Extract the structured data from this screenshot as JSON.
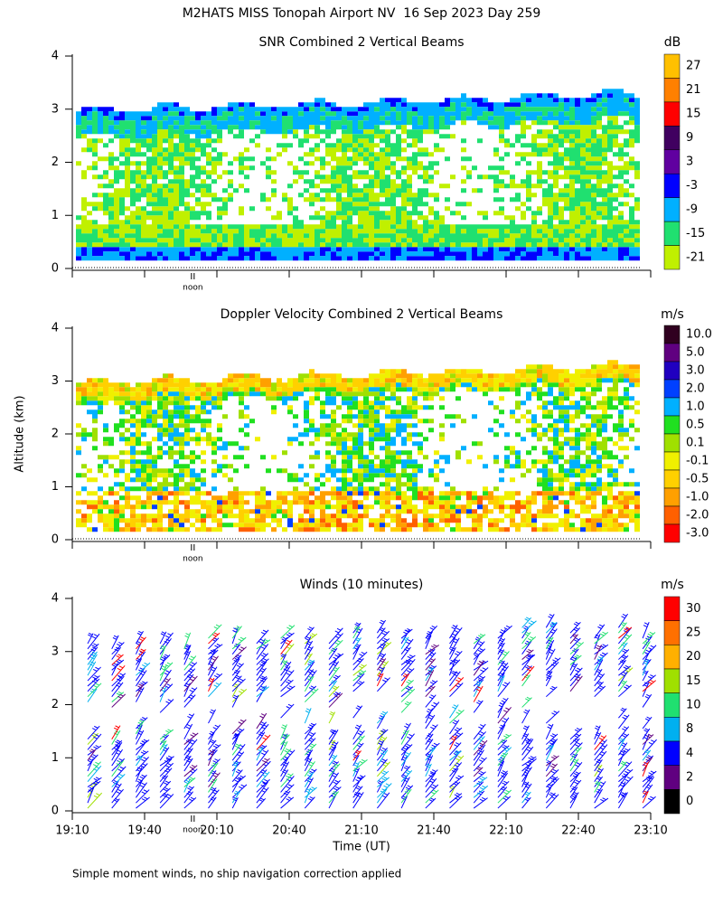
{
  "title": "M2HATS MISS Tonopah Airport NV  16 Sep 2023 Day 259",
  "y_label": "Altitude (km)",
  "x_label": "Time (UT)",
  "footnote": "Simple moment winds, no ship navigation correction applied",
  "chart_data": [
    {
      "type": "heatmap",
      "title": "SNR Combined 2 Vertical Beams",
      "xlim": [
        1150,
        1390
      ],
      "ylim": [
        0,
        4
      ],
      "yticks": [
        0,
        1,
        2,
        3,
        4
      ],
      "noon": {
        "value": 1200,
        "label": "noon"
      },
      "colorbar": {
        "unit": "dB",
        "ticks": [
          27,
          21,
          15,
          9,
          3,
          -3,
          -9,
          -15,
          -21
        ],
        "colors": [
          "#ffc000",
          "#ff8000",
          "#ff0000",
          "#400060",
          "#6000a0",
          "#0000ff",
          "#00b0ff",
          "#20e070",
          "#c0f000"
        ]
      }
    },
    {
      "type": "heatmap",
      "title": "Doppler Velocity Combined 2 Vertical Beams",
      "xlim": [
        1150,
        1390
      ],
      "ylim": [
        0,
        4
      ],
      "yticks": [
        0,
        1,
        2,
        3,
        4
      ],
      "noon": {
        "value": 1200,
        "label": "noon"
      },
      "colorbar": {
        "unit": "m/s",
        "ticks": [
          {
            "value": 10,
            "label": "10.0"
          },
          {
            "value": 5,
            "label": "5.0"
          },
          {
            "value": 3,
            "label": "3.0"
          },
          {
            "value": 2,
            "label": "2.0"
          },
          {
            "value": 1,
            "label": "1.0"
          },
          0.5,
          0.1,
          -0.1,
          -0.5,
          {
            "value": -1,
            "label": "-1.0"
          },
          {
            "value": -2,
            "label": "-2.0"
          },
          {
            "value": -3,
            "label": "-3.0"
          }
        ],
        "colors": [
          "#300020",
          "#600080",
          "#2000c0",
          "#0040ff",
          "#00b0ff",
          "#20e020",
          "#a0e000",
          "#f0f000",
          "#ffd000",
          "#ffa000",
          "#ff6000",
          "#ff0000"
        ]
      }
    },
    {
      "type": "barbs",
      "title": "Winds (10 minutes)",
      "xlim": [
        1150,
        1390
      ],
      "ylim": [
        0,
        4
      ],
      "yticks": [
        0,
        1,
        2,
        3,
        4
      ],
      "xticks": [
        {
          "value": 1150,
          "label": "19:10"
        },
        {
          "value": 1180,
          "label": "19:40"
        },
        {
          "value": 1210,
          "label": "20:10"
        },
        {
          "value": 1240,
          "label": "20:40"
        },
        {
          "value": 1270,
          "label": "21:10"
        },
        {
          "value": 1300,
          "label": "21:40"
        },
        {
          "value": 1330,
          "label": "22:10"
        },
        {
          "value": 1360,
          "label": "22:40"
        },
        {
          "value": 1390,
          "label": "23:10"
        }
      ],
      "noon": {
        "value": 1200,
        "label": "noon"
      },
      "colorbar": {
        "unit": "m/s",
        "ticks": [
          30,
          25,
          20,
          15,
          10,
          8,
          4,
          2,
          0
        ],
        "colors": [
          "#ff0000",
          "#ff7000",
          "#ffb000",
          "#a0e000",
          "#20e070",
          "#00b0f0",
          "#0000ff",
          "#600080",
          "#000000"
        ]
      }
    }
  ]
}
